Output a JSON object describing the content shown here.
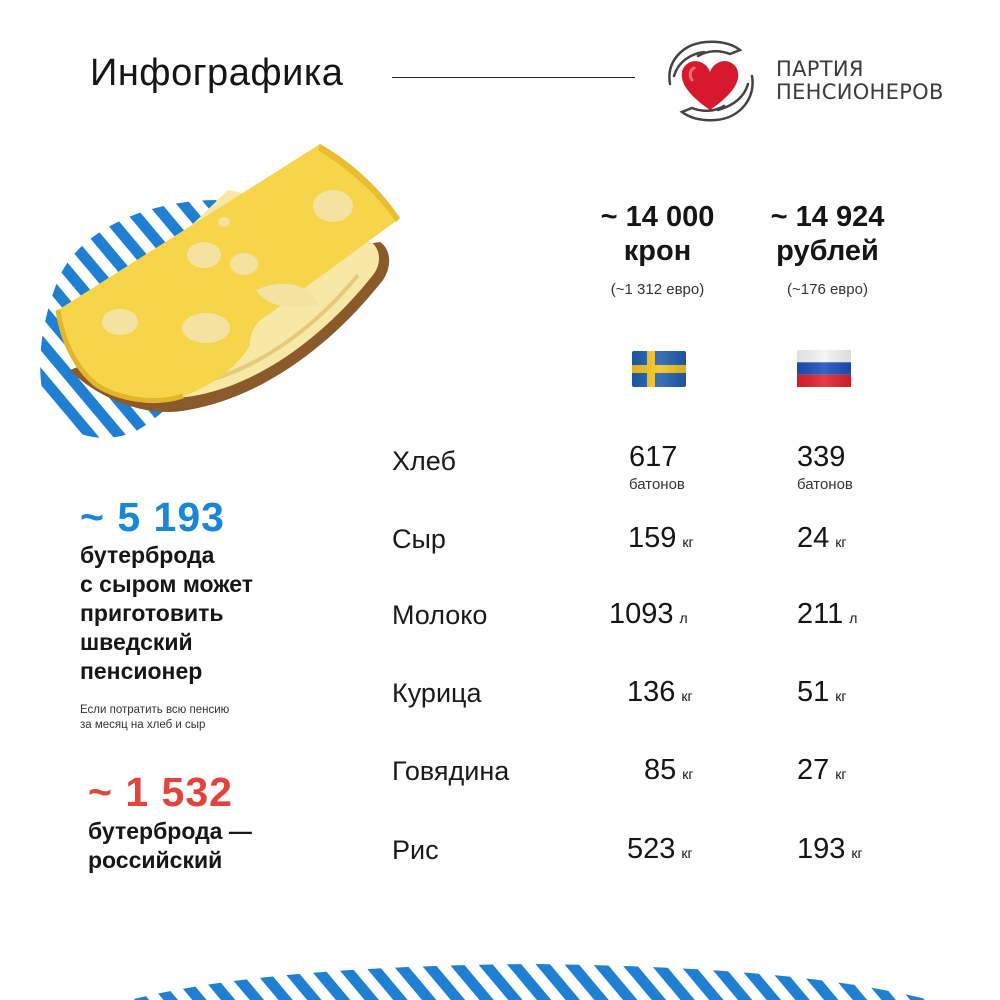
{
  "header": {
    "title": "Инфографика",
    "logo_line1": "ПАРТИЯ",
    "logo_line2": "ПЕНСИОНЕРОВ"
  },
  "sweden": {
    "amount": "~ 14 000",
    "currency": "крон",
    "eur": "(~1 312 евро)",
    "flag": "sweden-flag"
  },
  "russia": {
    "amount": "~ 14 924",
    "currency": "рублей",
    "eur": "(~176 евро)",
    "flag": "russia-flag"
  },
  "items": [
    {
      "name": "Хлеб",
      "se": "617",
      "ru": "339",
      "unit": "батонов"
    },
    {
      "name": "Сыр",
      "se": "159",
      "ru": "24",
      "unit": "кг"
    },
    {
      "name": "Молоко",
      "se": "1093",
      "ru": "211",
      "unit": "л"
    },
    {
      "name": "Курица",
      "se": "136",
      "ru": "51",
      "unit": "кг"
    },
    {
      "name": "Говядина",
      "se": "85",
      "ru": "27",
      "unit": "кг"
    },
    {
      "name": "Рис",
      "se": "523",
      "ru": "193",
      "unit": "кг"
    }
  ],
  "summary": {
    "se_count": "~ 5 193",
    "se_line1": "бутерброда",
    "se_line2": "с сыром может",
    "se_line3": "приготовить",
    "se_line4": "шведский",
    "se_line5": "пенсионер",
    "note_line1": "Если потратить всю пенсию",
    "note_line2": "за месяц на хлеб и сыр",
    "ru_count": "~ 1 532",
    "ru_line1": "бутерброда —",
    "ru_line2": "российский"
  },
  "colors": {
    "blue_accent": "#1a86d8",
    "red_accent": "#e2443c",
    "cheese": "#f7d54a",
    "logo_heart": "#d8182f"
  }
}
